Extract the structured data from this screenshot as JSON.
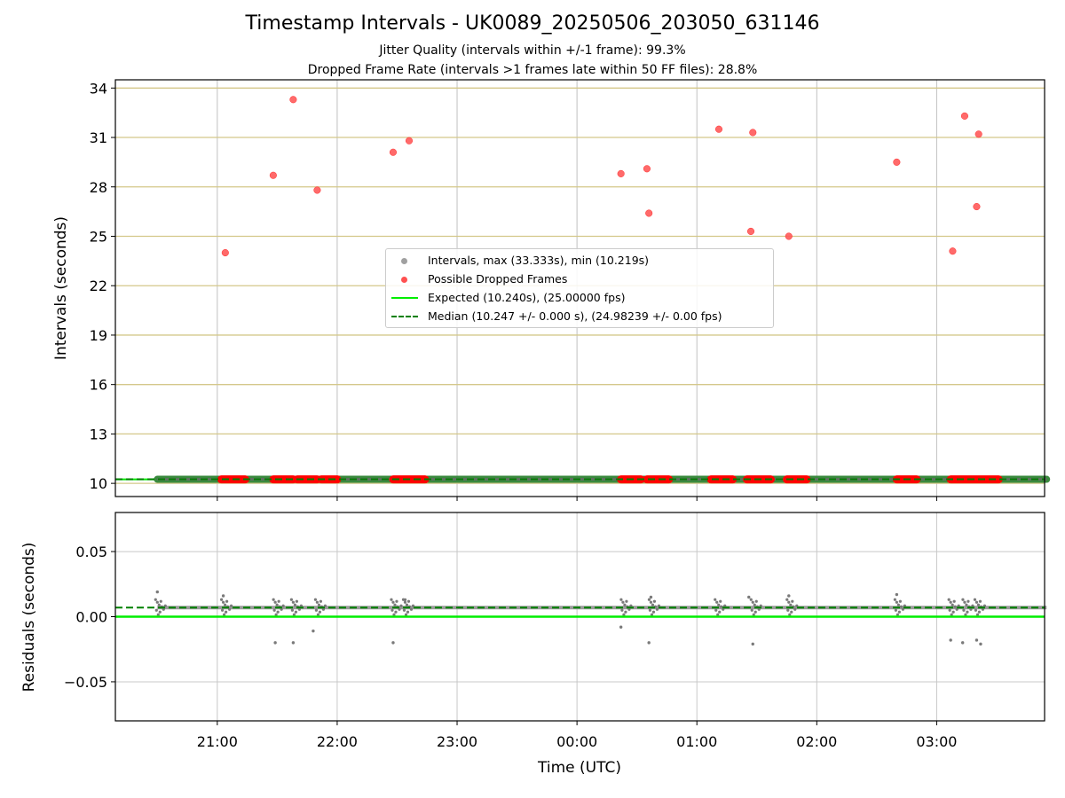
{
  "figure": {
    "title": "Timestamp Intervals - UK0089_20250506_203050_631146",
    "subtitle_1": "Jitter Quality (intervals within +/-1 frame): 99.3%",
    "subtitle_2": "Dropped Frame Rate (intervals >1 frames late within 50 FF files): 28.8%"
  },
  "chart_data": [
    {
      "type": "scatter",
      "panel": "intervals",
      "ylabel": "Intervals (seconds)",
      "ylim": [
        9.2,
        34.5
      ],
      "yticks": [
        "10",
        "13",
        "16",
        "19",
        "22",
        "25",
        "28",
        "31",
        "34"
      ],
      "xlim_hours": [
        20.15,
        27.9
      ],
      "grid": "on",
      "legend_position": "center",
      "legend": [
        {
          "label": "Intervals, max (33.333s), min (10.219s)",
          "marker": "point",
          "color": "#808080"
        },
        {
          "label": "Possible Dropped Frames",
          "marker": "point",
          "color": "#ff0000"
        },
        {
          "label": "Expected (10.240s), (25.00000 fps)",
          "marker": "line",
          "color": "#00ff00"
        },
        {
          "label": "Median (10.247 +/- 0.000 s), (24.98239 +/- 0.00 fps)",
          "marker": "dashed",
          "color": "#008000"
        }
      ],
      "series": [
        {
          "name": "Intervals, max (33.333s), min (10.219s)",
          "x_start": "20:30",
          "x_end": "27:55",
          "value": 10.247
        },
        {
          "name": "Possible Dropped Frames",
          "x": [
            "21:04",
            "21:28",
            "21:38",
            "21:50",
            "22:28",
            "22:36",
            "00:22",
            "00:35",
            "00:36",
            "01:11",
            "01:27",
            "01:28",
            "01:46",
            "02:40",
            "03:08",
            "03:14",
            "03:20",
            "03:21"
          ],
          "y": [
            24.0,
            28.7,
            33.3,
            27.8,
            30.1,
            30.8,
            28.8,
            29.1,
            26.4,
            31.5,
            25.3,
            31.3,
            25.0,
            29.5,
            24.1,
            32.3,
            26.8,
            31.2
          ]
        },
        {
          "name": "Possible Dropped Frames (baseline clusters)",
          "clusters": [
            [
              "21:02",
              "21:14"
            ],
            [
              "21:28",
              "21:38"
            ],
            [
              "21:40",
              "21:50"
            ],
            [
              "21:52",
              "22:00"
            ],
            [
              "22:28",
              "22:44"
            ],
            [
              "00:22",
              "00:32"
            ],
            [
              "00:35",
              "00:46"
            ],
            [
              "01:07",
              "01:18"
            ],
            [
              "01:25",
              "01:37"
            ],
            [
              "01:45",
              "01:55"
            ],
            [
              "02:40",
              "02:50"
            ],
            [
              "03:07",
              "03:31"
            ]
          ],
          "value": 10.24
        },
        {
          "name": "Expected (10.240s), (25.00000 fps)",
          "value": 10.24
        },
        {
          "name": "Median (10.247 +/- 0.000 s), (24.98239 +/- 0.00 fps)",
          "value": 10.247
        }
      ]
    },
    {
      "type": "scatter",
      "panel": "residuals",
      "ylabel": "Residuals (seconds)",
      "xlabel": "Time (UTC)",
      "ylim": [
        -0.08,
        0.08
      ],
      "yticks": [
        "−0.05",
        "0.00",
        "0.05"
      ],
      "xticks": [
        "21:00",
        "22:00",
        "23:00",
        "00:00",
        "01:00",
        "02:00",
        "03:00"
      ],
      "grid": "on",
      "series": [
        {
          "name": "Residuals",
          "clusters": [
            "20:30",
            "21:03",
            "21:29",
            "21:38",
            "21:50",
            "22:28",
            "22:34",
            "00:23",
            "00:37",
            "01:10",
            "01:28",
            "01:46",
            "02:40",
            "03:07",
            "03:14",
            "03:20"
          ],
          "outliers_x": [
            "20:30",
            "21:03",
            "21:29",
            "21:38",
            "21:48",
            "22:28",
            "22:34",
            "00:22",
            "00:36",
            "00:37",
            "01:28",
            "01:26",
            "01:46",
            "02:40",
            "03:07",
            "03:13",
            "03:20",
            "03:22"
          ],
          "outliers_y": [
            0.019,
            0.016,
            -0.02,
            -0.02,
            -0.011,
            -0.02,
            0.013,
            -0.008,
            -0.02,
            0.015,
            -0.021,
            0.015,
            0.016,
            0.017,
            -0.018,
            -0.02,
            -0.018,
            -0.021
          ]
        },
        {
          "name": "Expected",
          "value": 0.0
        },
        {
          "name": "Median",
          "value": 0.007
        }
      ]
    }
  ],
  "colors": {
    "grid_top": "#d4c88a",
    "grid": "#c8c8c8",
    "interval_line": "#2e7d32",
    "dropped": "#ff0000",
    "expected": "#00ee00",
    "median": "#008000",
    "residual_points": "#7a7a7a"
  }
}
